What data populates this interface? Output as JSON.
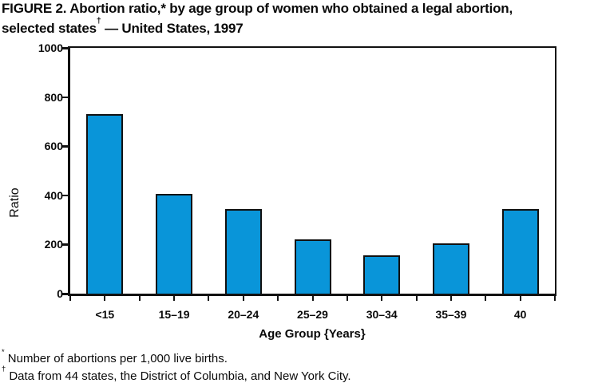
{
  "figure": {
    "title_line1": "FIGURE 2. Abortion ratio,* by age group of women who obtained a legal abortion,",
    "title_line2_text": "selected states",
    "title_line2_marker": "†",
    "title_line2_rest": " — United States, 1997"
  },
  "chart_data": {
    "type": "bar",
    "title": "FIGURE 2. Abortion ratio, by age group of women who obtained a legal abortion, selected states — United States, 1997",
    "categories": [
      "<15",
      "15–19",
      "20–24",
      "25–29",
      "30–34",
      "35–39",
      "40"
    ],
    "values": [
      730,
      405,
      345,
      220,
      155,
      205,
      345
    ],
    "xlabel": "Age Group {Years}",
    "ylabel": "Ratio",
    "ylim": [
      0,
      1000
    ],
    "yticks": [
      0,
      200,
      400,
      600,
      800,
      1000
    ],
    "grid": false,
    "legend": false,
    "bar_color": "#0995d9",
    "axis_color": "#111111"
  },
  "footnotes": [
    {
      "marker": "*",
      "text": " Number of abortions per 1,000 live births."
    },
    {
      "marker": "†",
      "text": " Data from 44 states, the District of Columbia, and New York City."
    }
  ]
}
